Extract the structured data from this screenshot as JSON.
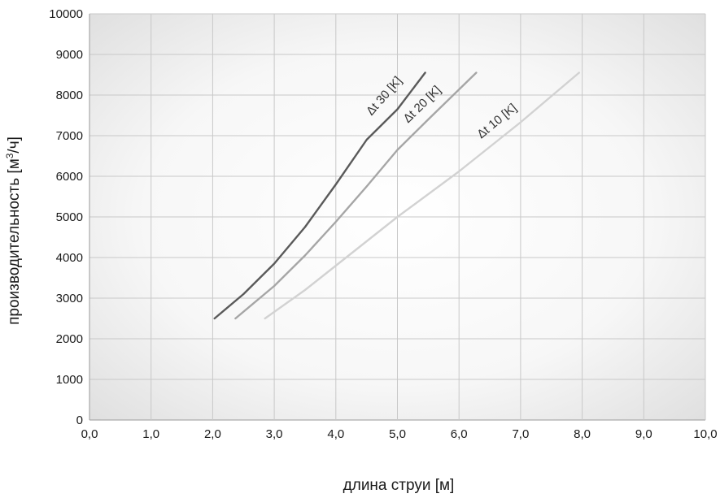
{
  "chart_data": {
    "type": "line",
    "xlabel": "длина струи [м]",
    "ylabel_prefix": "производительность [м",
    "ylabel_sup": "3",
    "ylabel_suffix": "/ч]",
    "xlim": [
      0,
      10
    ],
    "ylim": [
      0,
      10000
    ],
    "x_ticks": [
      0,
      1,
      2,
      3,
      4,
      5,
      6,
      7,
      8,
      9,
      10
    ],
    "x_tick_labels": [
      "0,0",
      "1,0",
      "2,0",
      "3,0",
      "4,0",
      "5,0",
      "6,0",
      "7,0",
      "8,0",
      "9,0",
      "10,0"
    ],
    "y_ticks": [
      0,
      1000,
      2000,
      3000,
      4000,
      5000,
      6000,
      7000,
      8000,
      9000,
      10000
    ],
    "y_tick_labels": [
      "0",
      "1000",
      "2000",
      "3000",
      "4000",
      "5000",
      "6000",
      "7000",
      "8000",
      "9000",
      "10000"
    ],
    "grid": true,
    "series": [
      {
        "name": "Δt 30 [K]",
        "color": "#5a5a5a",
        "points": [
          [
            2.03,
            2500
          ],
          [
            2.5,
            3100
          ],
          [
            3.0,
            3850
          ],
          [
            3.5,
            4750
          ],
          [
            4.0,
            5800
          ],
          [
            4.5,
            6900
          ],
          [
            5.0,
            7650
          ],
          [
            5.45,
            8550
          ]
        ]
      },
      {
        "name": "Δt 20 [K]",
        "color": "#a6a6a6",
        "points": [
          [
            2.37,
            2500
          ],
          [
            3.0,
            3300
          ],
          [
            3.5,
            4050
          ],
          [
            4.0,
            4880
          ],
          [
            4.5,
            5750
          ],
          [
            5.0,
            6650
          ],
          [
            5.5,
            7400
          ],
          [
            6.28,
            8550
          ]
        ]
      },
      {
        "name": "Δt 10 [K]",
        "color": "#d2d2d2",
        "points": [
          [
            2.85,
            2500
          ],
          [
            3.5,
            3200
          ],
          [
            4.0,
            3800
          ],
          [
            5.0,
            5000
          ],
          [
            6.0,
            6120
          ],
          [
            7.0,
            7330
          ],
          [
            7.95,
            8550
          ]
        ]
      }
    ]
  }
}
